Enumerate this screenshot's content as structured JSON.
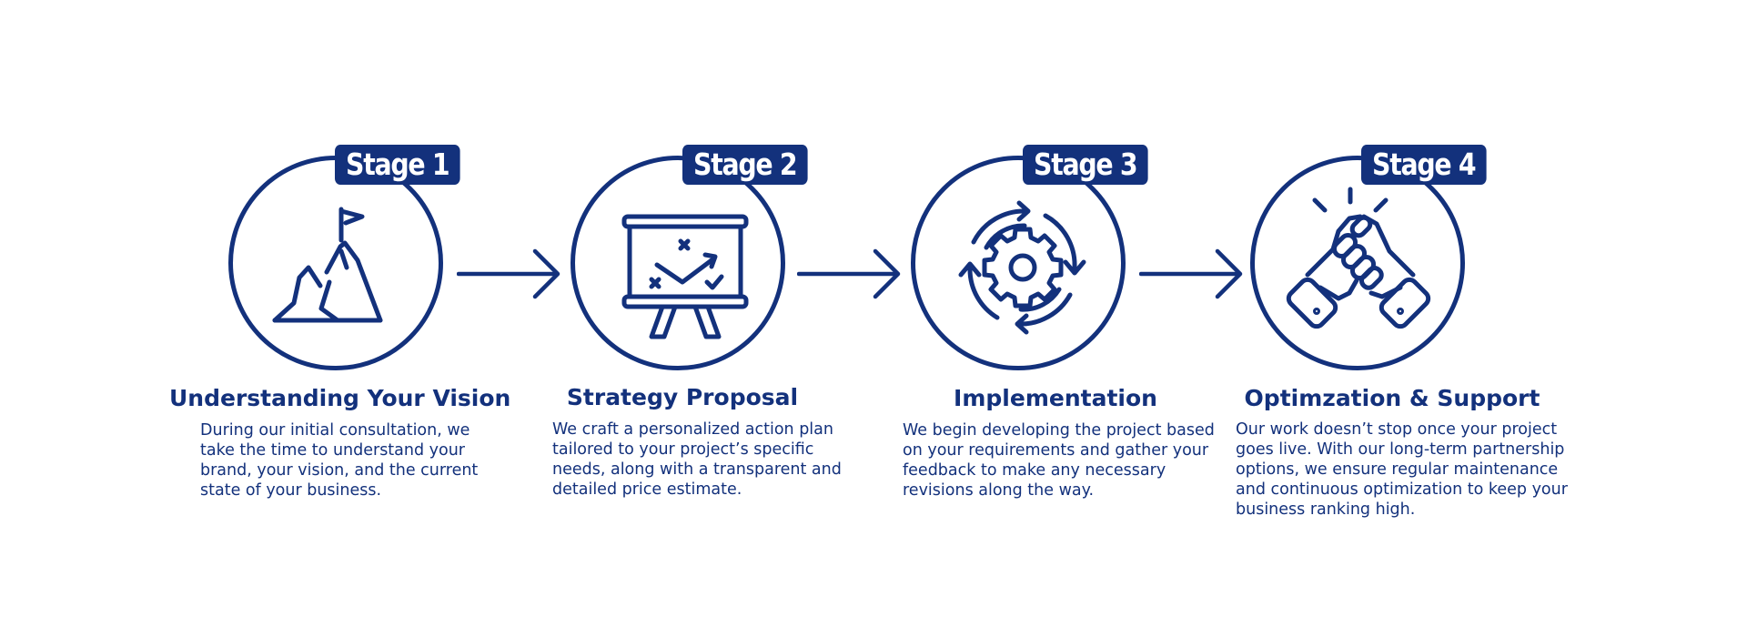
{
  "colors": {
    "primary": "#13317c",
    "background": "#ffffff"
  },
  "stages": [
    {
      "badge": "Stage 1",
      "icon": "mountain-flag-icon",
      "title": "Understanding Your Vision",
      "description": "During our initial consultation, we take the time to understand your brand, your vision, and the current state of your business."
    },
    {
      "badge": "Stage 2",
      "icon": "strategy-board-icon",
      "title": "Strategy Proposal",
      "description": "We craft a personalized action plan tailored to your project’s specific needs, along with a transparent and detailed price estimate."
    },
    {
      "badge": "Stage 3",
      "icon": "gear-cycle-icon",
      "title": "Implementation",
      "description": "We begin developing the project based on your requirements and gather your feedback to make any necessary revisions along the way."
    },
    {
      "badge": "Stage 4",
      "icon": "handshake-icon",
      "title": "Optimzation & Support",
      "description": "Our work doesn’t stop once your project goes live. With our long-term partnership options, we ensure regular maintenance and continuous optimization to keep your business ranking high."
    }
  ]
}
